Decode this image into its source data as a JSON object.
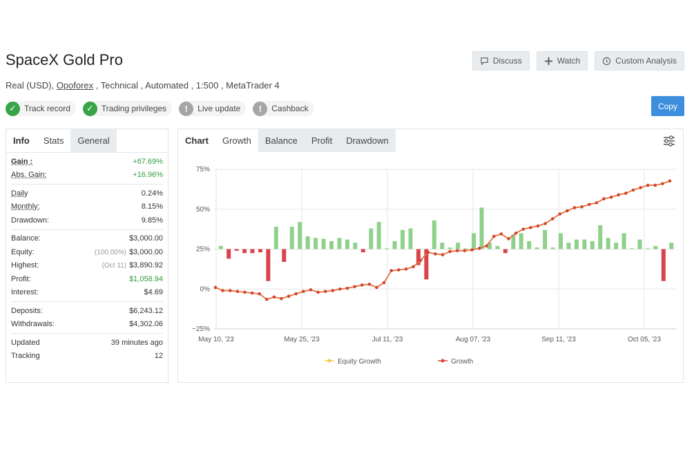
{
  "header": {
    "title": "SpaceX Gold Pro",
    "meta_prefix": "Real (USD), ",
    "meta_broker": "Opoforex",
    "meta_suffix": " , Technical , Automated , 1:500 , MetaTrader 4"
  },
  "actions": {
    "discuss": "Discuss",
    "watch": "Watch",
    "custom_analysis": "Custom Analysis",
    "copy": "Copy"
  },
  "badges": [
    {
      "label": "Track record",
      "status": "ok"
    },
    {
      "label": "Trading privileges",
      "status": "ok"
    },
    {
      "label": "Live update",
      "status": "warn"
    },
    {
      "label": "Cashback",
      "status": "warn"
    }
  ],
  "left_tabs": [
    "Info",
    "Stats",
    "General"
  ],
  "stats": {
    "gain_label": "Gain :",
    "gain": "+67.69%",
    "abs_gain_label": "Abs. Gain:",
    "abs_gain": "+16.96%",
    "daily_label": "Daily",
    "daily": "0.24%",
    "monthly_label": "Monthly:",
    "monthly": "8.15%",
    "drawdown_label": "Drawdown:",
    "drawdown": "9.85%",
    "balance_label": "Balance:",
    "balance": "$3,000.00",
    "equity_label": "Equity:",
    "equity_pct": "(100.00%)",
    "equity": "$3,000.00",
    "highest_label": "Highest:",
    "highest_date": "(Oct 11)",
    "highest": "$3,890.92",
    "profit_label": "Profit:",
    "profit": "$1,058.94",
    "interest_label": "Interest:",
    "interest": "$4.69",
    "deposits_label": "Deposits:",
    "deposits": "$6,243.12",
    "withdrawals_label": "Withdrawals:",
    "withdrawals": "$4,302.06",
    "updated_label": "Updated",
    "updated": "39 minutes ago",
    "tracking_label": "Tracking",
    "tracking": "12"
  },
  "right_tabs": [
    "Chart",
    "Growth",
    "Balance",
    "Profit",
    "Drawdown"
  ],
  "colors": {
    "growth_line": "#e0733a",
    "growth_marker": "#d4452f",
    "equity_growth": "#f2c94c",
    "bar_positive": "#8fd18a",
    "bar_negative": "#d9434a"
  },
  "chart_data": {
    "type": "line",
    "ylim": [
      -25,
      75
    ],
    "yticks": [
      "75%",
      "50%",
      "25%",
      "0%",
      "−25%"
    ],
    "ytick_values": [
      75,
      50,
      25,
      0,
      -25
    ],
    "xticks": [
      "May 10, '23",
      "May 25, '23",
      "Jul 11, '23",
      "Aug 07, '23",
      "Sep 11, '23",
      "Oct 05, '23"
    ],
    "legend": [
      "Equity Growth",
      "Growth"
    ],
    "legend_position": "bottom",
    "growth": [
      1,
      -1,
      -1,
      -1.5,
      -2,
      -2.5,
      -3,
      -6.5,
      -5,
      -6,
      -4.5,
      -3,
      -1.5,
      -0.5,
      -2,
      -1.5,
      -1,
      0,
      0.5,
      1.5,
      2.5,
      3,
      1,
      4,
      11.5,
      12,
      12.5,
      14,
      18,
      23,
      22,
      21.5,
      23.5,
      24,
      24,
      24.5,
      25.5,
      27,
      33,
      34.5,
      31.5,
      35,
      37.5,
      38.5,
      39.5,
      41,
      44,
      47,
      49,
      51,
      51.5,
      53,
      54,
      56.5,
      57.5,
      59,
      60,
      62,
      63.5,
      65,
      65,
      66,
      67.7
    ],
    "bars": [
      2,
      -6,
      -1,
      -2.5,
      -2.5,
      -2,
      -20,
      14,
      -8,
      14,
      17,
      8,
      7,
      6.5,
      5,
      7,
      6,
      4,
      -2,
      13,
      17,
      0.5,
      5,
      12,
      13,
      -10,
      -19,
      18,
      4,
      1,
      4,
      0.5,
      10,
      26,
      4,
      2,
      -2.5,
      9,
      10,
      5,
      1,
      12,
      1,
      10,
      4,
      6,
      6,
      5,
      15,
      7,
      4,
      10,
      0.5,
      6,
      0.5,
      2,
      -20,
      4
    ]
  }
}
